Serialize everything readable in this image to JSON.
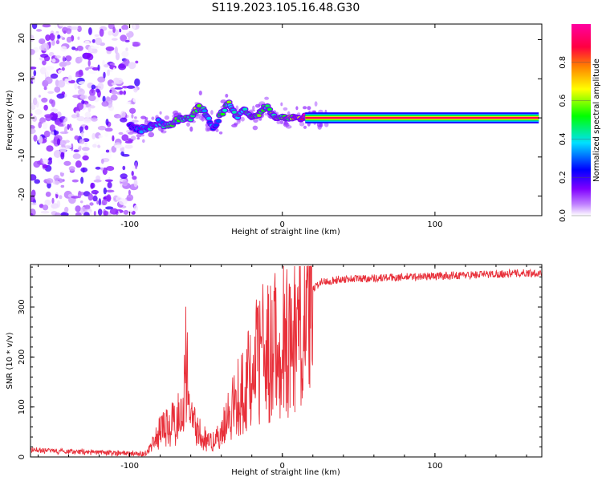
{
  "title": "S119.2023.105.16.48.G30",
  "chart_data": [
    {
      "type": "heatmap",
      "xlabel": "Height of straight line (km)",
      "ylabel": "Frequency (Hz)",
      "xlim": [
        -165,
        170
      ],
      "ylim": [
        -25,
        24
      ],
      "xticks": [
        -100,
        0,
        100
      ],
      "yticks": [
        -20,
        -10,
        0,
        10,
        20
      ],
      "colorbar": {
        "label": "Normalized spectral amplitude",
        "range": [
          0,
          1
        ],
        "ticks": [
          0.0,
          0.2,
          0.4,
          0.6,
          0.8
        ],
        "colormap": [
          "#ffffff",
          "#8000ff",
          "#0000ff",
          "#00e0ff",
          "#00ff00",
          "#ffff00",
          "#ff8000",
          "#ff0040",
          "#ff00a0"
        ]
      },
      "series": [
        {
          "x": [
            -100,
            -95,
            -90,
            -85,
            -80,
            -75,
            -70,
            -65,
            -60,
            -55,
            -50,
            -45,
            -40,
            -35,
            -30,
            -25,
            -20,
            -15,
            -10,
            -5,
            0,
            5,
            10,
            20,
            40,
            60,
            80,
            100,
            120,
            140,
            160,
            170
          ],
          "y": [
            -2,
            -3,
            -3,
            -2,
            -1,
            -2,
            -1,
            0,
            0,
            3,
            1,
            -3,
            1,
            4,
            0,
            2,
            0,
            1,
            3,
            0,
            0,
            0,
            0,
            0,
            0,
            0,
            0,
            0,
            0,
            0,
            0,
            0
          ],
          "amplitude": [
            0.2,
            0.3,
            0.35,
            0.4,
            0.4,
            0.45,
            0.5,
            0.45,
            0.5,
            0.55,
            0.4,
            0.3,
            0.45,
            0.5,
            0.45,
            0.5,
            0.5,
            0.55,
            0.55,
            0.5,
            0.6,
            0.7,
            0.85,
            0.95,
            0.95,
            0.95,
            0.95,
            0.95,
            0.95,
            0.95,
            0.95,
            0.95
          ]
        }
      ]
    },
    {
      "type": "line",
      "xlabel": "Height of straight line (km)",
      "ylabel": "SNR (10 * v/v)",
      "xlim": [
        -165,
        170
      ],
      "ylim": [
        0,
        385
      ],
      "xticks": [
        -100,
        0,
        100
      ],
      "yticks": [
        0,
        100,
        200,
        300
      ],
      "color": "#e8303a",
      "series": [
        {
          "x": [
            -165,
            -150,
            -130,
            -110,
            -90,
            -85,
            -80,
            -75,
            -70,
            -65,
            -63,
            -60,
            -55,
            -50,
            -45,
            -40,
            -35,
            -30,
            -25,
            -20,
            -15,
            -10,
            -5,
            0,
            5,
            10,
            15,
            20,
            25,
            30,
            40,
            60,
            80,
            100,
            120,
            140,
            160,
            170
          ],
          "y": [
            14,
            12,
            10,
            8,
            6,
            30,
            60,
            70,
            80,
            110,
            230,
            90,
            60,
            40,
            35,
            60,
            100,
            130,
            160,
            200,
            230,
            250,
            260,
            270,
            285,
            300,
            320,
            335,
            350,
            352,
            356,
            358,
            360,
            362,
            364,
            366,
            368,
            368
          ]
        }
      ]
    }
  ]
}
